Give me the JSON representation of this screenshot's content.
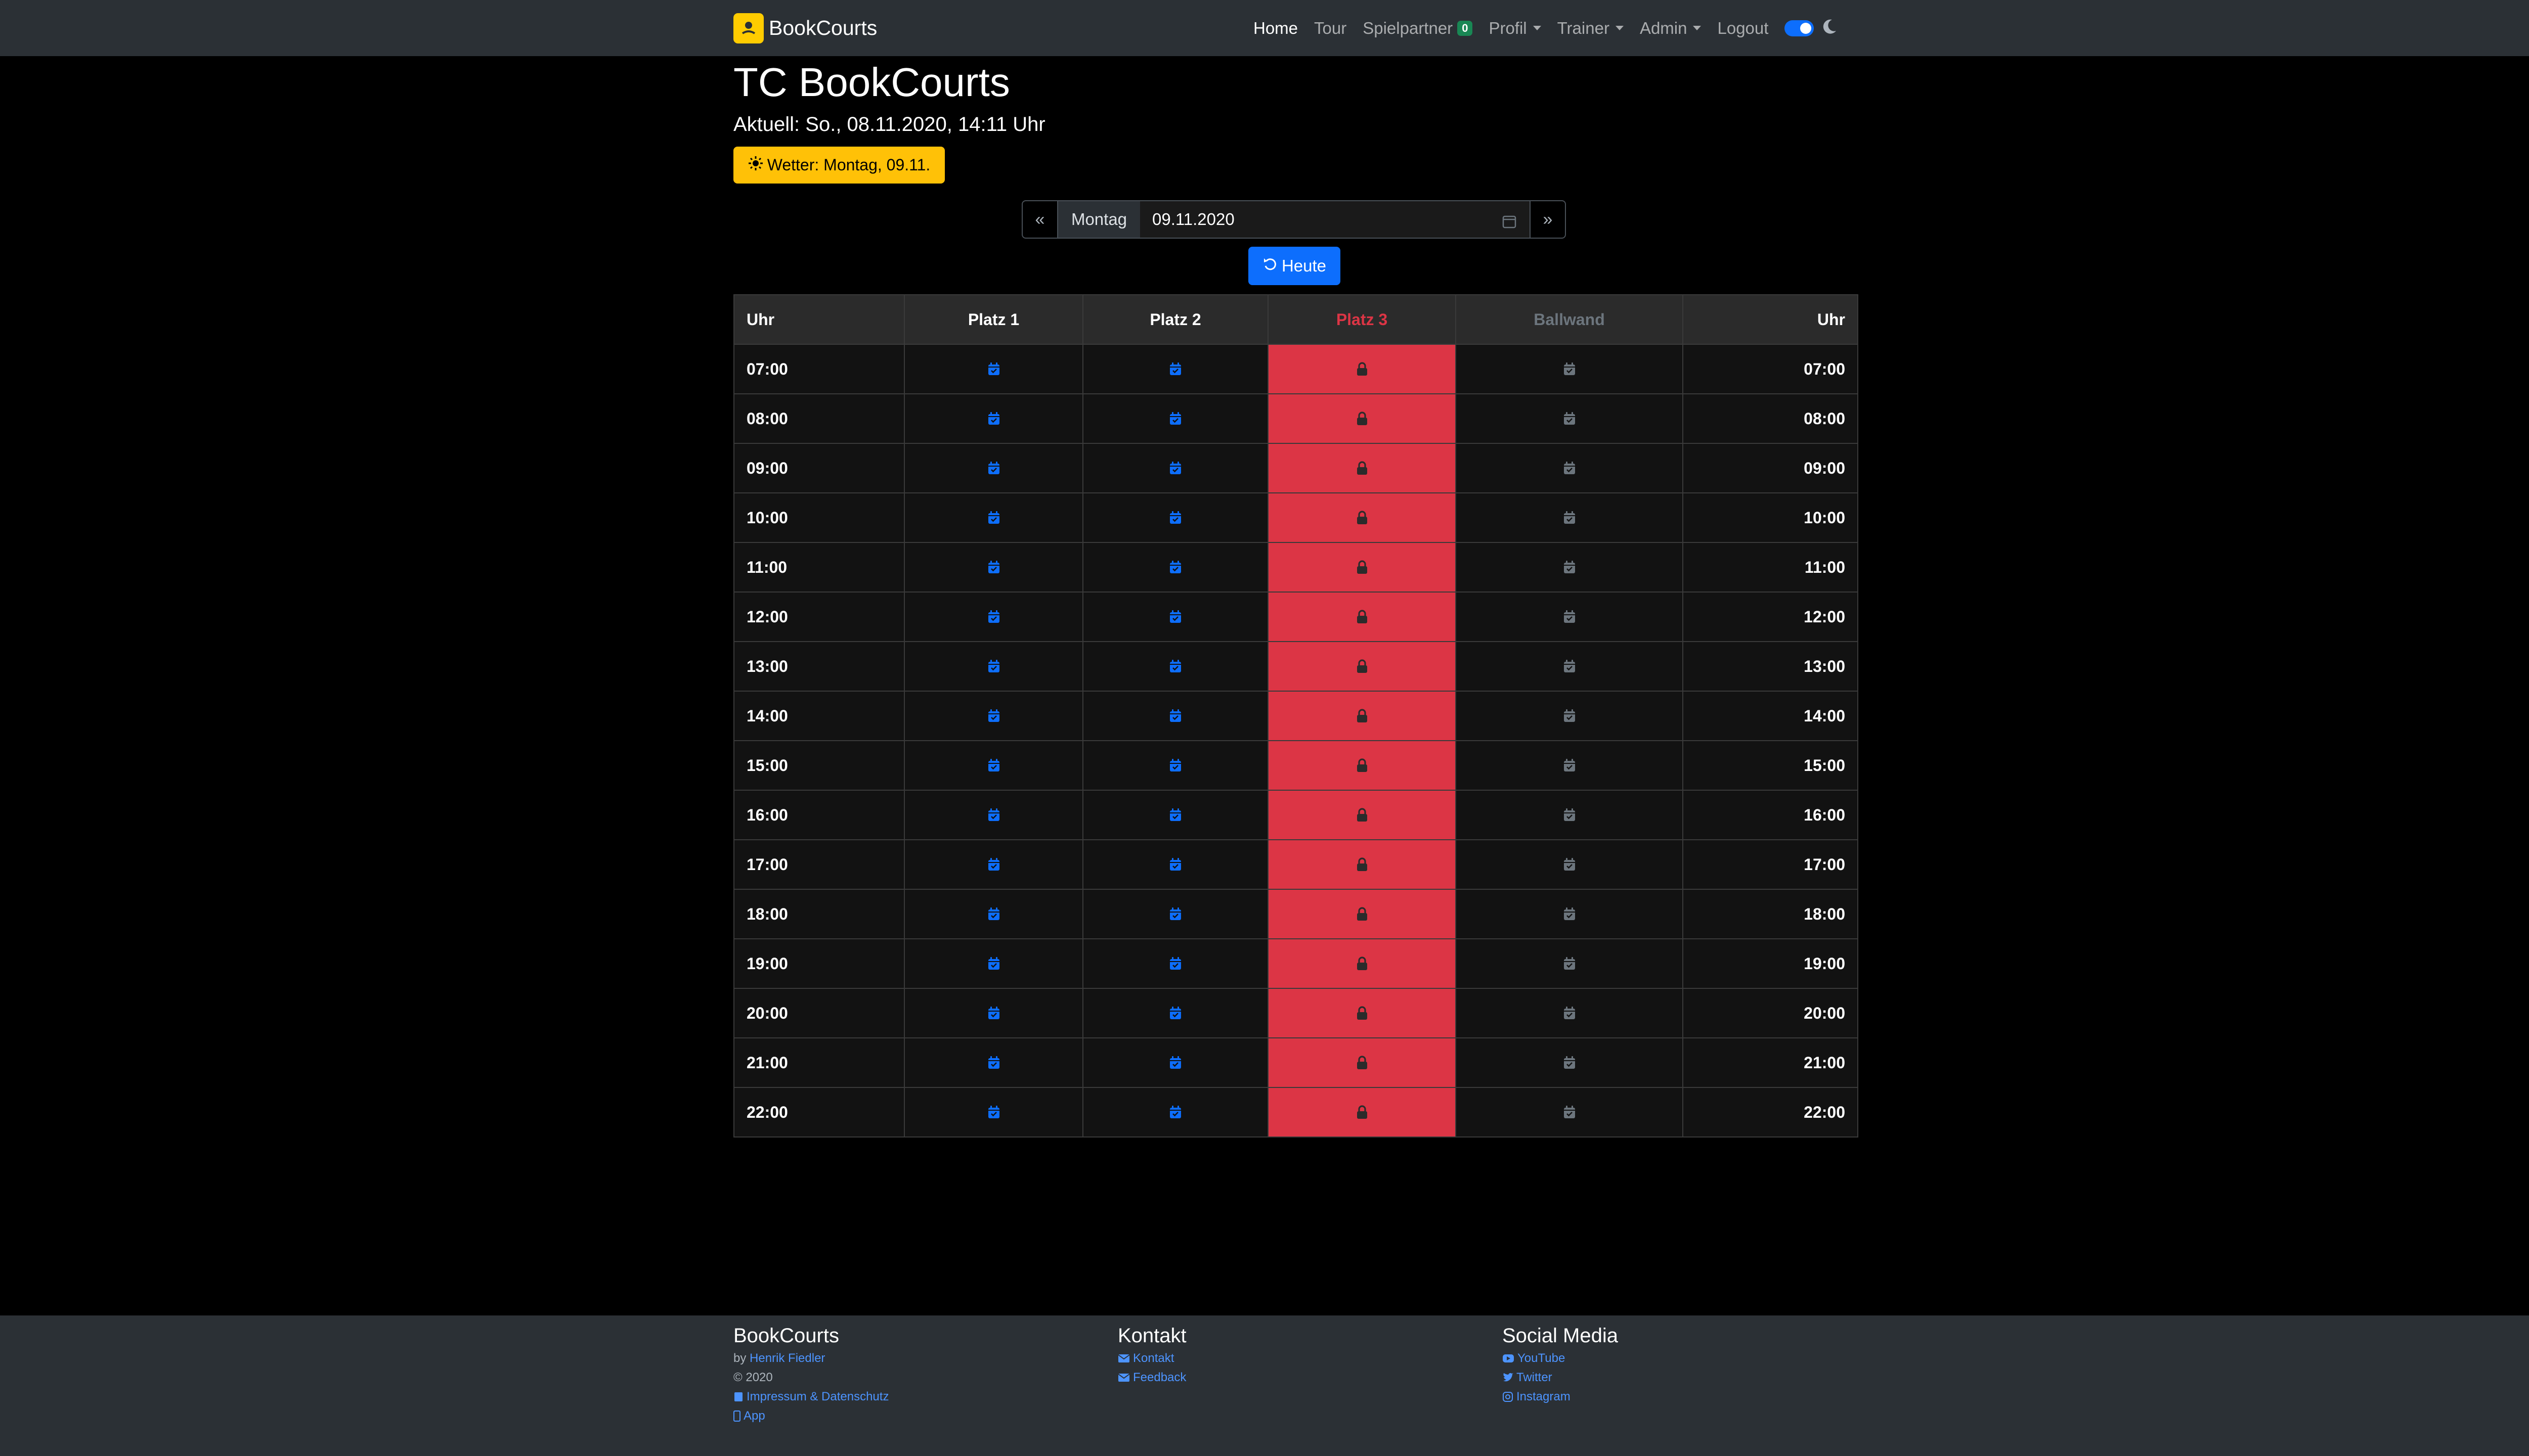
{
  "navbar": {
    "brand": "BookCourts",
    "items": [
      {
        "label": "Home",
        "active": true
      },
      {
        "label": "Tour"
      },
      {
        "label": "Spielpartner",
        "badge": "0"
      },
      {
        "label": "Profil",
        "dropdown": true
      },
      {
        "label": "Trainer",
        "dropdown": true
      },
      {
        "label": "Admin",
        "dropdown": true
      },
      {
        "label": "Logout"
      }
    ],
    "dark_mode_on": true
  },
  "header": {
    "title": "TC BookCourts",
    "current": "Aktuell: So., 08.11.2020, 14:11 Uhr",
    "weather_button": "Wetter: Montag, 09.11."
  },
  "date_nav": {
    "prev": "«",
    "day": "Montag",
    "date": "09.11.2020",
    "next": "»",
    "today": "Heute"
  },
  "table": {
    "columns": [
      "Uhr",
      "Platz 1",
      "Platz 2",
      "Platz 3",
      "Ballwand",
      "Uhr"
    ],
    "times": [
      "07:00",
      "08:00",
      "09:00",
      "10:00",
      "11:00",
      "12:00",
      "13:00",
      "14:00",
      "15:00",
      "16:00",
      "17:00",
      "18:00",
      "19:00",
      "20:00",
      "21:00",
      "22:00"
    ],
    "cell_state": {
      "Platz 1": "bookable",
      "Platz 2": "bookable",
      "Platz 3": "locked",
      "Ballwand": "unavailable"
    }
  },
  "colors": {
    "navbar_bg": "#2b3035",
    "accent": "#0d6efd",
    "locked": "#dc3545",
    "warning": "#ffc107",
    "badge": "#198754",
    "muted": "#6c757d"
  },
  "icons": {
    "bookable": "calendar-check-icon",
    "locked": "lock-icon",
    "unavailable": "calendar-check-icon"
  },
  "footer": {
    "col1": {
      "title": "BookCourts",
      "by": "by",
      "author": "Henrik Fiedler",
      "year": "© 2020",
      "impressum": "Impressum & Datenschutz",
      "app": "App"
    },
    "col2": {
      "title": "Kontakt",
      "kontakt": "Kontakt",
      "feedback": "Feedback"
    },
    "col3": {
      "title": "Social Media",
      "youtube": "YouTube",
      "twitter": "Twitter",
      "instagram": "Instagram"
    }
  }
}
